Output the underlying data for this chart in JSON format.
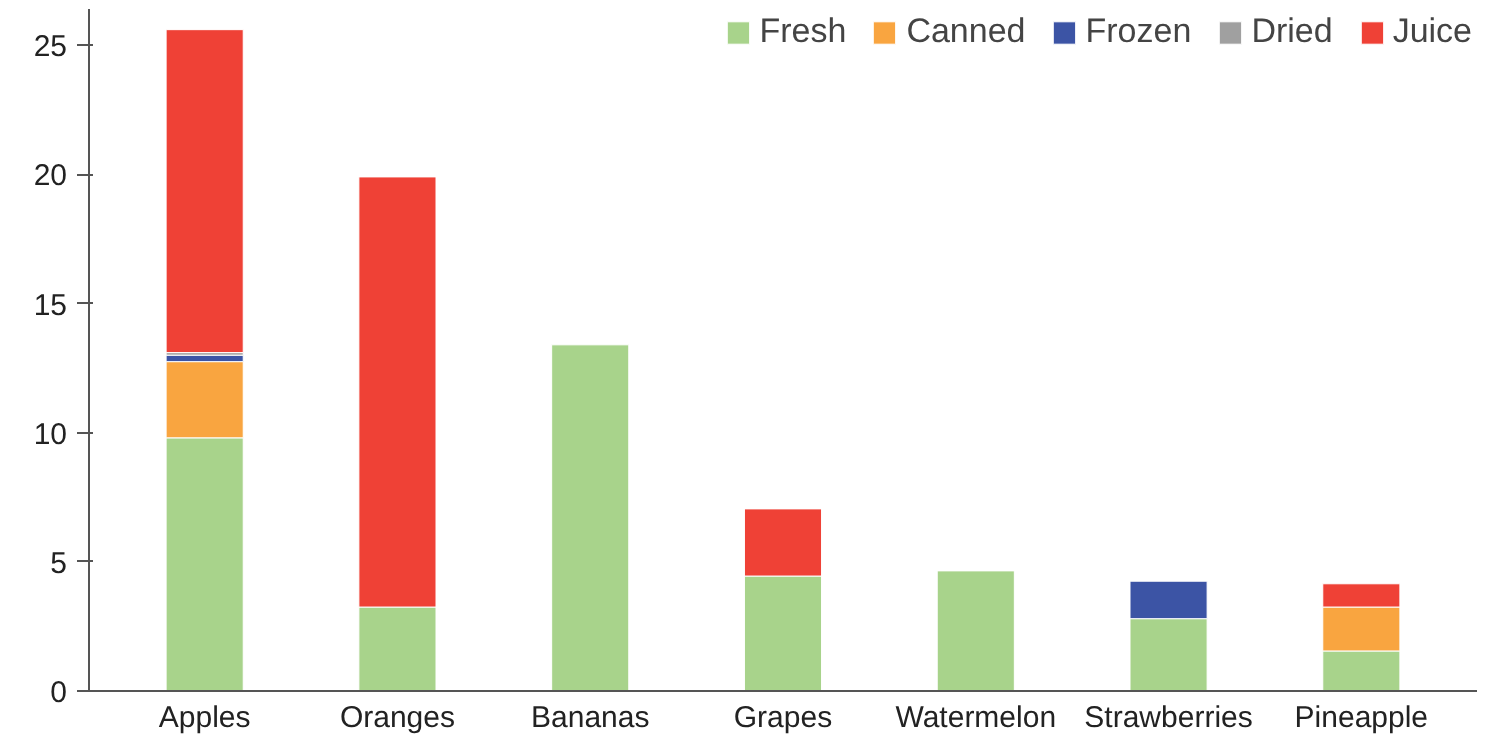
{
  "chart_data": {
    "type": "bar",
    "stacked": true,
    "categories": [
      "Apples",
      "Oranges",
      "Bananas",
      "Grapes",
      "Watermelon",
      "Strawberries",
      "Pineapple"
    ],
    "series": [
      {
        "name": "Fresh",
        "color": "#a8d38b",
        "values": [
          9.8,
          3.25,
          13.4,
          4.45,
          4.65,
          2.8,
          1.55
        ]
      },
      {
        "name": "Canned",
        "color": "#f9a540",
        "values": [
          2.95,
          0,
          0,
          0,
          0,
          0,
          1.7
        ]
      },
      {
        "name": "Frozen",
        "color": "#3c54a5",
        "values": [
          0.25,
          0,
          0,
          0,
          0,
          1.45,
          0
        ]
      },
      {
        "name": "Dried",
        "color": "#a0a0a0",
        "values": [
          0.1,
          0,
          0,
          0,
          0,
          0,
          0
        ]
      },
      {
        "name": "Juice",
        "color": "#ef4136",
        "values": [
          12.5,
          16.65,
          0,
          2.6,
          0,
          0,
          0.9
        ]
      }
    ],
    "ylim": [
      0,
      26.4
    ],
    "yticks": [
      0,
      5,
      10,
      15,
      20,
      25
    ],
    "grid": false,
    "legend": "top right"
  }
}
